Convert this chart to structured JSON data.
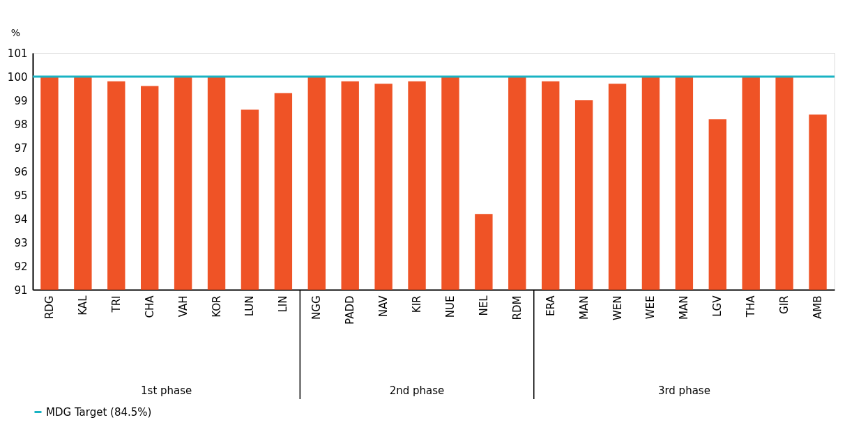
{
  "chart_data": {
    "type": "bar",
    "ylabel": "%",
    "categories": [
      "RDG",
      "KAL",
      "TRI",
      "CHA",
      "VAH",
      "KOR",
      "LUN",
      "LIN",
      "NGG",
      "PADD",
      "NAV",
      "KIR",
      "NUE",
      "NEL",
      "RDM",
      "ERA",
      "MAN",
      "WEN",
      "WEE",
      "MAN",
      "LGV",
      "THA",
      "GIR",
      "AMB"
    ],
    "values": [
      100.0,
      100.0,
      99.8,
      99.6,
      100.0,
      100.0,
      98.6,
      99.3,
      100.0,
      99.8,
      99.7,
      99.8,
      100.0,
      94.2,
      100.0,
      99.8,
      99.0,
      99.7,
      100.0,
      100.0,
      98.2,
      100.0,
      100.0,
      98.4
    ],
    "color": "#ef5326",
    "ylim": [
      91,
      101
    ],
    "yticks": [
      91,
      92,
      93,
      94,
      95,
      96,
      97,
      98,
      99,
      100,
      101
    ],
    "ref_lines": [
      {
        "axis": "y",
        "value": 100,
        "label": "MDG Target (84.5%)",
        "color": "#19b3c3"
      }
    ],
    "annotations": [
      "1st phase",
      "2nd phase",
      "3rd phase"
    ],
    "legend": "bottom left",
    "grid": false
  }
}
